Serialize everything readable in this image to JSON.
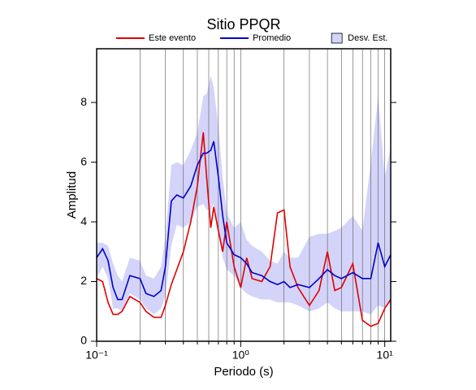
{
  "chart_data": {
    "type": "line",
    "title": "Sitio PPQR",
    "xlabel": "Periodo (s)",
    "ylabel": "Amplitud",
    "x": [
      0.1,
      0.11,
      0.12,
      0.13,
      0.14,
      0.15,
      0.17,
      0.2,
      0.22,
      0.25,
      0.28,
      0.3,
      0.33,
      0.36,
      0.4,
      0.45,
      0.5,
      0.55,
      0.58,
      0.62,
      0.65,
      0.7,
      0.75,
      0.8,
      0.9,
      1.0,
      1.1,
      1.2,
      1.4,
      1.6,
      1.8,
      2.0,
      2.2,
      2.5,
      3,
      3.5,
      4,
      4.5,
      5,
      6,
      7,
      8,
      9,
      10,
      11
    ],
    "series": [
      {
        "name": "Este evento",
        "color": "#e00000",
        "values": [
          2.1,
          2.0,
          1.3,
          0.9,
          0.9,
          1.0,
          1.5,
          1.3,
          1.0,
          0.8,
          0.8,
          1.2,
          1.9,
          2.4,
          3.0,
          4.0,
          5.2,
          7.0,
          5.5,
          3.8,
          4.5,
          3.7,
          3.0,
          4.0,
          2.5,
          1.8,
          2.8,
          2.1,
          2.0,
          2.5,
          4.3,
          4.4,
          2.5,
          1.8,
          1.2,
          1.7,
          3.0,
          1.7,
          1.8,
          2.6,
          0.7,
          0.5,
          0.6,
          1.1,
          1.4
        ]
      },
      {
        "name": "Promedio",
        "color": "#0000cc",
        "values": [
          2.8,
          3.1,
          2.7,
          1.8,
          1.4,
          1.4,
          2.2,
          2.1,
          1.6,
          1.5,
          1.7,
          2.5,
          4.7,
          4.9,
          4.8,
          5.2,
          5.9,
          6.3,
          6.3,
          6.4,
          6.7,
          5.5,
          4.2,
          3.3,
          2.9,
          2.8,
          2.6,
          2.3,
          2.2,
          2.0,
          1.9,
          2.0,
          1.8,
          1.9,
          1.8,
          2.1,
          2.4,
          2.2,
          2.1,
          2.3,
          2.1,
          2.1,
          3.3,
          2.5,
          2.9
        ]
      },
      {
        "name": "Desv. Est.",
        "color": "#d4d4fa",
        "upper": [
          3.3,
          3.3,
          3.2,
          2.6,
          2.2,
          2.0,
          2.8,
          2.7,
          2.2,
          2.1,
          2.5,
          3.5,
          5.9,
          6.0,
          5.9,
          6.4,
          7.0,
          8.2,
          8.3,
          8.9,
          8.5,
          7.2,
          5.5,
          4.3,
          3.8,
          4.0,
          3.4,
          3.2,
          3.0,
          2.7,
          2.6,
          3.0,
          2.8,
          2.8,
          3.5,
          3.6,
          3.6,
          3.7,
          3.8,
          4.2,
          3.7,
          6.0,
          8.2,
          5.5,
          6.5
        ],
        "lower": [
          2.1,
          2.5,
          2.1,
          1.1,
          1.1,
          1.0,
          1.6,
          1.4,
          1.1,
          0.9,
          1.1,
          1.5,
          3.2,
          3.9,
          3.8,
          4.0,
          4.5,
          4.6,
          4.4,
          4.4,
          4.6,
          3.6,
          2.8,
          2.4,
          2.2,
          1.8,
          1.6,
          1.5,
          1.4,
          1.4,
          1.3,
          1.3,
          1.3,
          1.2,
          1.0,
          1.1,
          1.3,
          1.1,
          1.0,
          1.0,
          1.0,
          0.9,
          1.2,
          1.1,
          1.3
        ]
      }
    ],
    "xscale": "log",
    "xlim": [
      0.1,
      11
    ],
    "ylim": [
      0,
      9.8
    ],
    "xticks": [
      {
        "value": 0.1,
        "label": "10⁻¹"
      },
      {
        "value": 1,
        "label": "10⁰"
      },
      {
        "value": 10,
        "label": "10¹"
      }
    ],
    "xminorticks": [
      0.2,
      0.3,
      0.4,
      0.5,
      0.6,
      0.7,
      0.8,
      0.9,
      2,
      3,
      4,
      5,
      6,
      7,
      8,
      9
    ],
    "yticks": [
      0,
      2,
      4,
      6,
      8
    ],
    "grid": "x",
    "legend": "top"
  }
}
